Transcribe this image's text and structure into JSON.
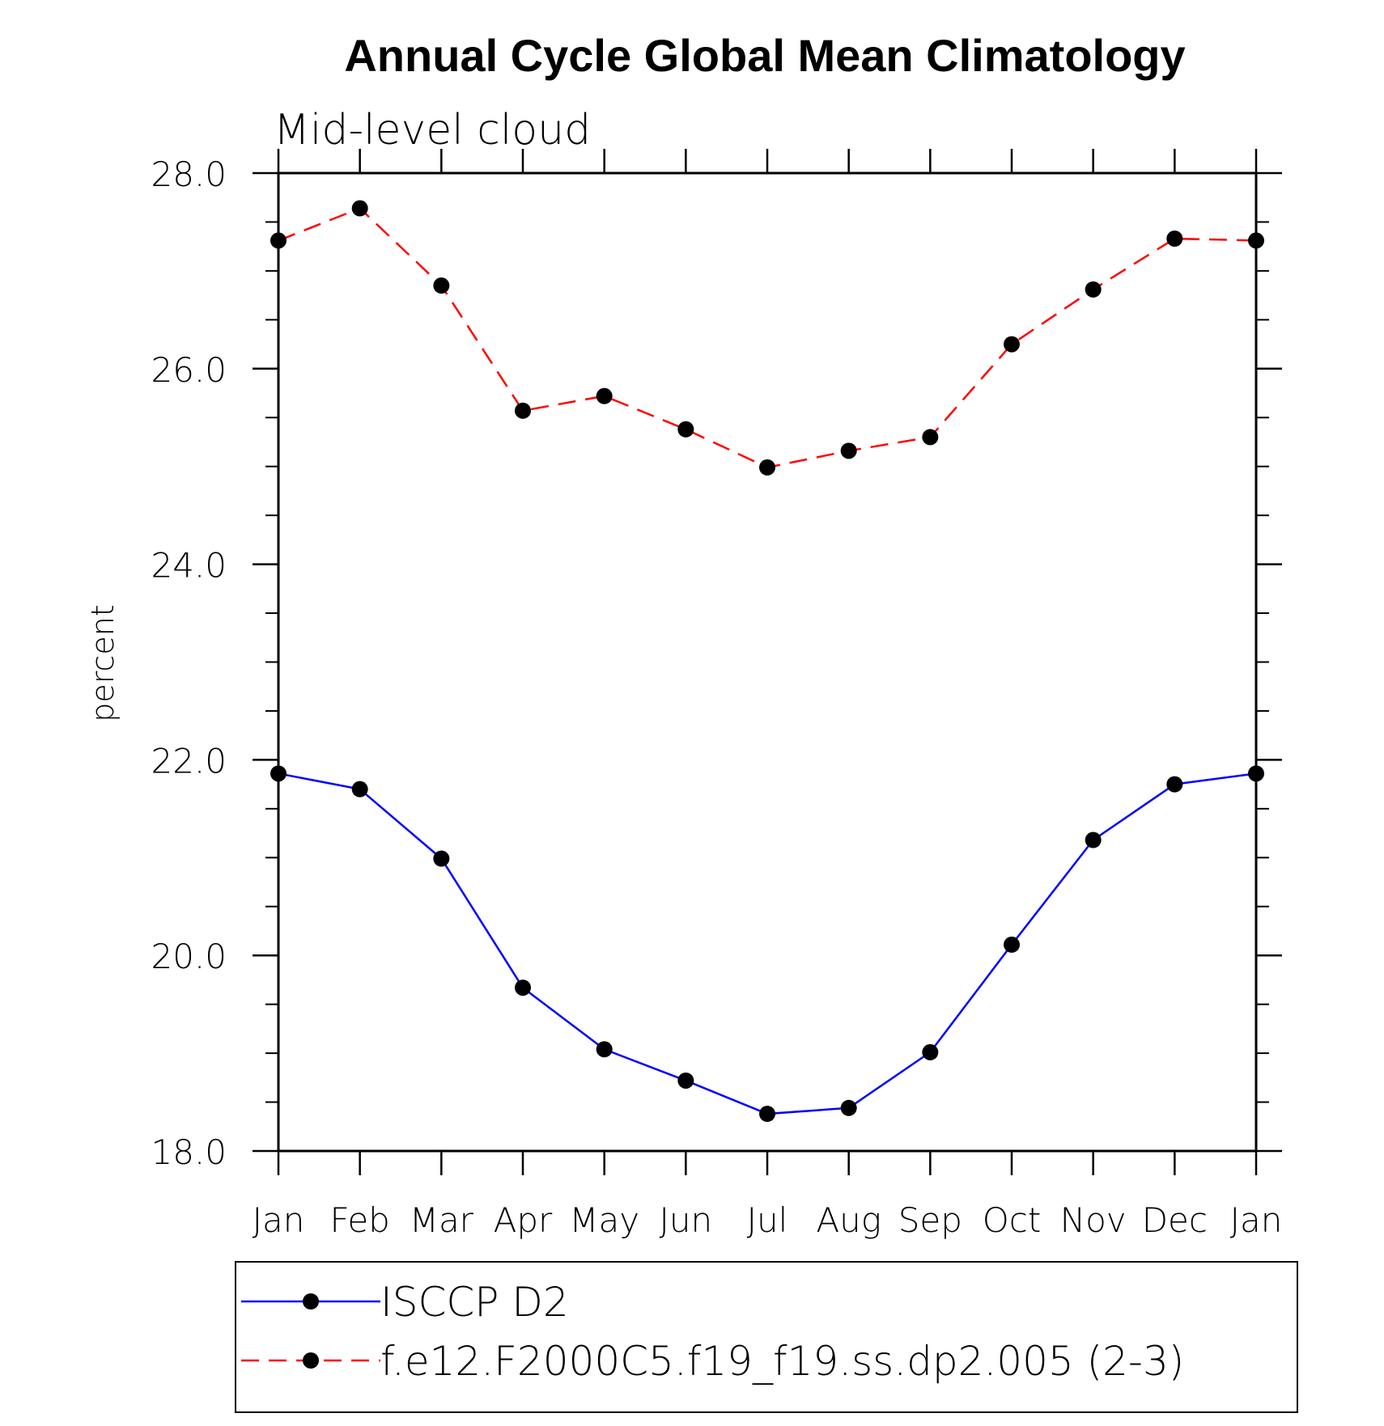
{
  "chart_data": {
    "type": "line",
    "title": "Annual Cycle Global Mean Climatology",
    "subtitle": "Mid-level cloud",
    "xlabel": "",
    "ylabel": "percent",
    "categories": [
      "Jan",
      "Feb",
      "Mar",
      "Apr",
      "May",
      "Jun",
      "Jul",
      "Aug",
      "Sep",
      "Oct",
      "Nov",
      "Dec",
      "Jan"
    ],
    "ylim": [
      18.0,
      28.0
    ],
    "yticks": [
      "18.0",
      "20.0",
      "22.0",
      "24.0",
      "26.0",
      "28.0"
    ],
    "ytick_values": [
      18,
      20,
      22,
      24,
      26,
      28
    ],
    "series": [
      {
        "name": "ISCCP D2",
        "color": "#0000ff",
        "linestyle": "solid",
        "marker": "filled-circle",
        "values": [
          21.86,
          21.7,
          20.99,
          19.67,
          19.04,
          18.72,
          18.38,
          18.44,
          19.01,
          20.11,
          21.18,
          21.75,
          21.86
        ]
      },
      {
        "name": "f.e12.F2000C5.f19_f19.ss.dp2.005 (2-3)",
        "color": "#ff0000",
        "linestyle": "dashed",
        "marker": "filed-circle",
        "values": [
          27.31,
          27.64,
          26.85,
          25.57,
          25.72,
          25.38,
          24.99,
          25.16,
          25.3,
          26.25,
          26.81,
          27.33,
          27.31
        ]
      }
    ],
    "grid": false,
    "legend_position": "bottom"
  }
}
